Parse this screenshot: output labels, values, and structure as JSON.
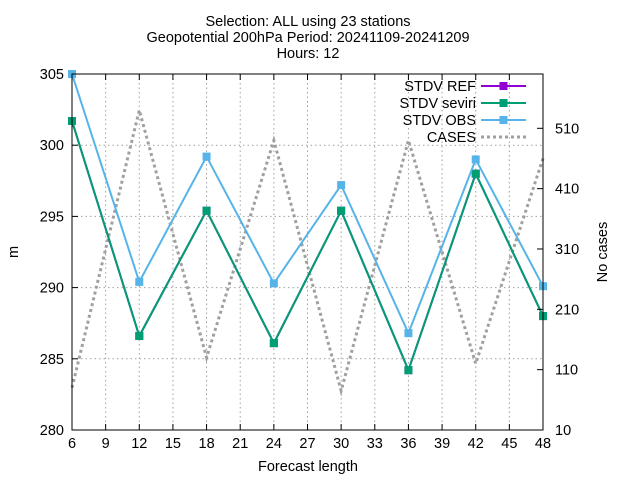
{
  "chart_data": {
    "type": "line",
    "title_lines": [
      "Selection: ALL using    23 stations",
      "Geopotential 200hPa   Period: 20241109-20241209",
      "Hours: 12"
    ],
    "xlabel": "Forecast length",
    "ylabel": "m",
    "y2label": "No cases",
    "xlim": [
      6,
      48
    ],
    "ylim": [
      280,
      305
    ],
    "y2lim": [
      10,
      600
    ],
    "xticks": [
      6,
      9,
      12,
      15,
      18,
      21,
      24,
      27,
      30,
      33,
      36,
      39,
      42,
      45,
      48
    ],
    "yticks": [
      280,
      285,
      290,
      295,
      300,
      305
    ],
    "y2ticks": [
      10,
      110,
      210,
      310,
      410,
      510
    ],
    "grid": true,
    "legend_position": "top-right",
    "x": [
      6,
      12,
      18,
      24,
      30,
      36,
      42,
      48
    ],
    "series": [
      {
        "name": "STDV REF",
        "axis": "y",
        "color": "#9400d3",
        "marker": "square",
        "values": [
          301.7,
          286.6,
          295.4,
          286.1,
          295.4,
          284.2,
          298.0,
          288.0
        ]
      },
      {
        "name": "STDV seviri",
        "axis": "y",
        "color": "#009e73",
        "marker": "square",
        "values": [
          301.7,
          286.6,
          295.4,
          286.1,
          295.4,
          284.2,
          298.0,
          288.0
        ]
      },
      {
        "name": "STDV OBS",
        "axis": "y",
        "color": "#56b4e9",
        "marker": "square",
        "values": [
          305.0,
          290.4,
          299.2,
          290.3,
          297.2,
          286.8,
          299.0,
          290.1
        ]
      },
      {
        "name": "CASES",
        "axis": "y2",
        "color": "#a0a0a0",
        "dash": true,
        "values": [
          80,
          540,
          130,
          490,
          75,
          490,
          120,
          460
        ]
      }
    ]
  }
}
